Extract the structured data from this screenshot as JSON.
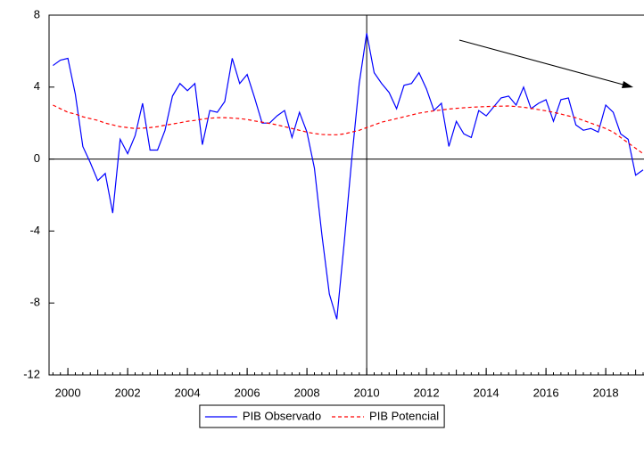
{
  "chart_data": {
    "type": "line",
    "x": [
      1999.5,
      1999.75,
      2000,
      2000.25,
      2000.5,
      2000.75,
      2001,
      2001.25,
      2001.5,
      2001.75,
      2002,
      2002.25,
      2002.5,
      2002.75,
      2003,
      2003.25,
      2003.5,
      2003.75,
      2004,
      2004.25,
      2004.5,
      2004.75,
      2005,
      2005.25,
      2005.5,
      2005.75,
      2006,
      2006.25,
      2006.5,
      2006.75,
      2007,
      2007.25,
      2007.5,
      2007.75,
      2008,
      2008.25,
      2008.5,
      2008.75,
      2009,
      2009.25,
      2009.5,
      2009.75,
      2010,
      2010.25,
      2010.5,
      2010.75,
      2011,
      2011.25,
      2011.5,
      2011.75,
      2012,
      2012.25,
      2012.5,
      2012.75,
      2013,
      2013.25,
      2013.5,
      2013.75,
      2014,
      2014.25,
      2014.5,
      2014.75,
      2015,
      2015.25,
      2015.5,
      2015.75,
      2016,
      2016.25,
      2016.5,
      2016.75,
      2017,
      2017.25,
      2017.5,
      2017.75,
      2018,
      2018.25,
      2018.5,
      2018.75,
      2019,
      2019.25
    ],
    "series": [
      {
        "name": "PIB Observado",
        "color": "#0000ff",
        "dash": false,
        "values": [
          5.2,
          5.5,
          5.6,
          3.6,
          0.7,
          -0.2,
          -1.2,
          -0.8,
          -3.0,
          1.1,
          0.3,
          1.3,
          3.1,
          0.5,
          0.5,
          1.6,
          3.5,
          4.2,
          3.8,
          4.2,
          0.8,
          2.7,
          2.6,
          3.2,
          5.6,
          4.2,
          4.7,
          3.4,
          2.0,
          2.0,
          2.4,
          2.7,
          1.2,
          2.6,
          1.5,
          -0.5,
          -4.2,
          -7.5,
          -8.9,
          -4.6,
          0.0,
          4.2,
          7.0,
          4.8,
          4.2,
          3.7,
          2.8,
          4.1,
          4.2,
          4.8,
          3.9,
          2.7,
          3.1,
          0.7,
          2.1,
          1.4,
          1.2,
          2.7,
          2.4,
          2.9,
          3.4,
          3.5,
          3.0,
          4.0,
          2.8,
          3.1,
          3.3,
          2.1,
          3.3,
          3.4,
          1.9,
          1.6,
          1.7,
          1.5,
          3.0,
          2.6,
          1.4,
          1.1,
          -0.9,
          -0.6
        ]
      },
      {
        "name": "PIB Potencial",
        "color": "#ff0000",
        "dash": true,
        "values": [
          3.0,
          2.8,
          2.6,
          2.5,
          2.35,
          2.25,
          2.15,
          2.0,
          1.9,
          1.8,
          1.75,
          1.7,
          1.72,
          1.75,
          1.8,
          1.88,
          1.95,
          2.02,
          2.1,
          2.15,
          2.22,
          2.27,
          2.3,
          2.3,
          2.28,
          2.25,
          2.2,
          2.12,
          2.05,
          1.98,
          1.9,
          1.8,
          1.7,
          1.6,
          1.5,
          1.42,
          1.37,
          1.35,
          1.35,
          1.4,
          1.5,
          1.6,
          1.75,
          1.9,
          2.05,
          2.15,
          2.25,
          2.35,
          2.45,
          2.55,
          2.62,
          2.68,
          2.73,
          2.78,
          2.82,
          2.85,
          2.88,
          2.9,
          2.92,
          2.93,
          2.94,
          2.95,
          2.92,
          2.88,
          2.82,
          2.75,
          2.68,
          2.6,
          2.5,
          2.4,
          2.3,
          2.15,
          2.0,
          1.85,
          1.7,
          1.5,
          1.2,
          0.9,
          0.6,
          0.3
        ]
      }
    ],
    "xlim": [
      1999.37,
      2019.28
    ],
    "xticks": [
      2000,
      2002,
      2004,
      2006,
      2008,
      2010,
      2012,
      2014,
      2016,
      2018
    ],
    "ylim": [
      -12,
      8
    ],
    "yticks": [
      -12,
      -8,
      -4,
      0,
      4,
      8
    ],
    "hline": 0,
    "vline": 2010,
    "grid": false,
    "legend": "bottom"
  }
}
